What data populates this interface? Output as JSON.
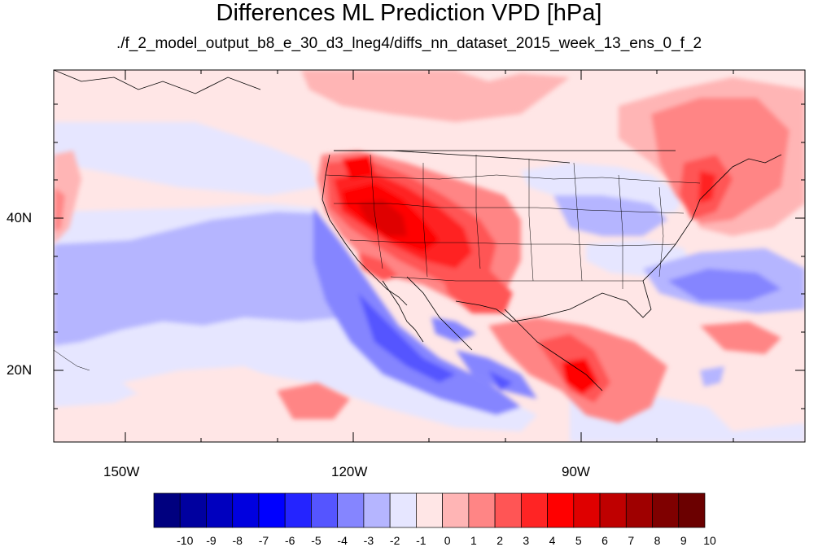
{
  "title": "Differences ML Prediction VPD [hPa]",
  "subtitle": "./f_2_model_output_b8_e_30_d3_lneg4/diffs_nn_dataset_2015_week_13_ens_0_f_2",
  "lat_labels": [
    "40N",
    "20N"
  ],
  "lon_labels": [
    "150W",
    "120W",
    "90W"
  ],
  "colorbar": {
    "labels": [
      "-10",
      "-9",
      "-8",
      "-7",
      "-6",
      "-5",
      "-4",
      "-3",
      "-2",
      "-1",
      "0",
      "1",
      "2",
      "3",
      "4",
      "5",
      "6",
      "7",
      "8",
      "9",
      "10"
    ],
    "colors": [
      "#00007f",
      "#00009f",
      "#0000bf",
      "#0000df",
      "#0000ff",
      "#2424ff",
      "#5555ff",
      "#8585ff",
      "#b5b5ff",
      "#e6e6ff",
      "#ffe6e6",
      "#ffb5b5",
      "#ff8585",
      "#ff5555",
      "#ff2424",
      "#ff0000",
      "#df0000",
      "#bf0000",
      "#9f0000",
      "#7f0000",
      "#6b0000"
    ]
  }
}
